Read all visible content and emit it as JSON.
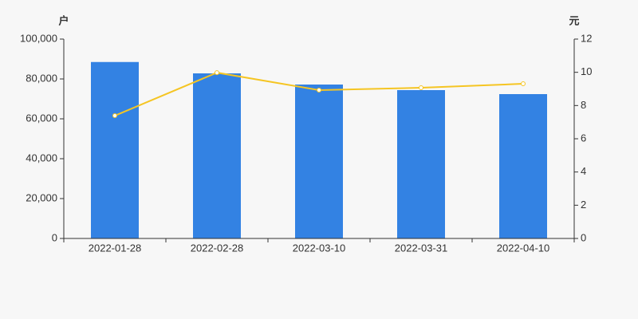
{
  "chart_data": {
    "type": "bar",
    "y_label": "户",
    "y2_label": "元",
    "categories": [
      "2022-01-28",
      "2022-02-28",
      "2022-03-10",
      "2022-03-31",
      "2022-04-10"
    ],
    "series": [
      {
        "type": "bar",
        "color": "#3382e3",
        "values": [
          88500,
          82800,
          77200,
          74400,
          72400
        ]
      },
      {
        "type": "line",
        "axis": "y2",
        "color": "#f5c523",
        "values": [
          7.39,
          9.98,
          8.93,
          9.07,
          9.31
        ]
      }
    ],
    "ylim": [
      0,
      100000
    ],
    "yticks": [
      0,
      {
        "value": 20000,
        "label": "20,000"
      },
      {
        "value": 40000,
        "label": "40,000"
      },
      {
        "value": 60000,
        "label": "60,000"
      },
      {
        "value": 80000,
        "label": "80,000"
      },
      {
        "value": 100000,
        "label": "100,000"
      }
    ],
    "y2lim": [
      0,
      12
    ],
    "y2ticks": [
      0,
      2,
      4,
      6,
      8,
      10,
      12
    ]
  }
}
